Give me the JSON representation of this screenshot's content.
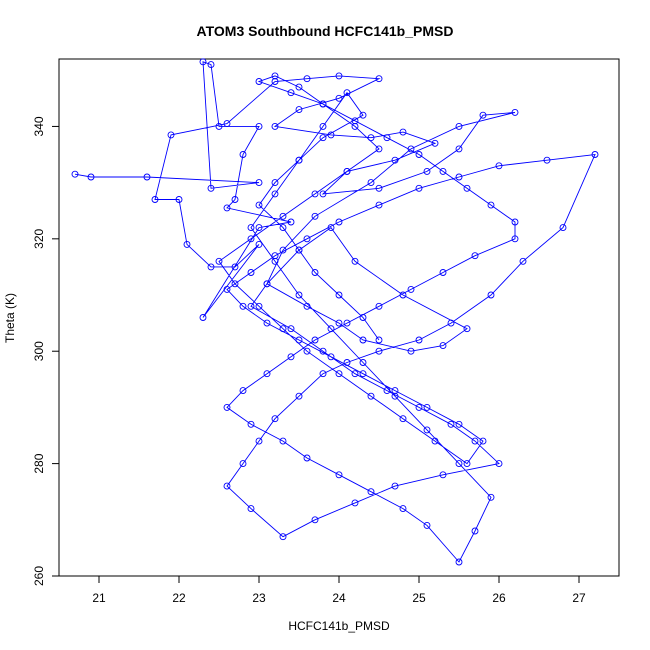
{
  "chart_data": {
    "type": "scatter",
    "title": "ATOM3 Southbound HCFC141b_PMSD",
    "xlabel": "HCFC141b_PMSD",
    "ylabel": "Theta (K)",
    "xlim": [
      20.5,
      27.5
    ],
    "ylim": [
      260,
      352
    ],
    "x_ticks": [
      21,
      22,
      23,
      24,
      25,
      26,
      27
    ],
    "y_ticks": [
      260,
      280,
      300,
      320,
      340
    ],
    "connected": true,
    "colors": {
      "series": "#0000ff",
      "axes": "#000000"
    },
    "x": [
      20.7,
      20.9,
      21.6,
      23.0,
      22.4,
      22.3,
      22.4,
      22.5,
      23.0,
      22.8,
      22.7,
      22.6,
      23.4,
      23.0,
      22.3,
      23.0,
      22.7,
      22.4,
      22.1,
      22.0,
      21.7,
      21.9,
      22.6,
      23.2,
      23.6,
      24.0,
      24.5,
      24.0,
      23.5,
      23.2,
      23.9,
      24.4,
      24.8,
      25.2,
      24.7,
      24.1,
      23.8,
      24.5,
      25.1,
      25.5,
      25.8,
      26.2,
      25.5,
      24.9,
      24.4,
      23.7,
      23.3,
      23.1,
      23.6,
      24.0,
      24.3,
      24.9,
      25.3,
      25.6,
      24.8,
      24.2,
      23.9,
      23.5,
      23.1,
      22.9,
      23.4,
      23.8,
      24.2,
      24.6,
      25.0,
      25.4,
      25.7,
      26.0,
      25.3,
      24.7,
      24.2,
      23.7,
      23.3,
      22.9,
      22.6,
      22.8,
      23.0,
      23.2,
      23.5,
      23.8,
      24.1,
      24.5,
      25.0,
      25.4,
      25.9,
      26.3,
      26.8,
      27.2,
      26.6,
      26.0,
      25.5,
      25.0,
      24.5,
      24.0,
      23.6,
      23.2,
      22.9,
      22.6,
      22.8,
      23.1,
      23.5,
      23.9,
      24.3,
      24.7,
      25.1,
      25.5,
      25.8,
      25.6,
      25.2,
      24.8,
      24.4,
      24.0,
      23.6,
      23.3,
      23.0,
      22.7,
      22.5,
      22.9,
      23.3,
      23.7,
      24.1,
      24.5,
      24.2,
      23.8,
      23.5,
      23.2,
      23.0,
      23.4,
      23.8,
      24.2,
      24.6,
      25.0,
      25.3,
      25.6,
      25.9,
      26.2,
      26.2,
      25.7,
      25.3,
      24.9,
      24.5,
      24.1,
      23.7,
      23.4,
      23.1,
      22.8,
      22.6,
      22.9,
      23.3,
      23.6,
      24.0,
      24.4,
      24.8,
      25.1,
      25.5,
      25.7,
      25.9,
      25.5,
      25.1,
      24.7,
      24.3,
      23.9,
      23.5,
      23.2,
      22.9,
      23.2,
      23.5,
      23.8,
      24.1,
      24.3,
      23.8,
      23.5,
      23.2,
      23.0,
      23.3,
      23.5,
      23.7,
      24.0,
      24.3,
      24.5
    ],
    "y": [
      331.5,
      331.0,
      331.0,
      330.0,
      329.0,
      351.5,
      351.0,
      340.0,
      340.0,
      335.0,
      327.0,
      325.5,
      323.0,
      322.0,
      306.0,
      319.0,
      315.0,
      315.0,
      319.0,
      327.0,
      327.0,
      338.5,
      340.5,
      348.0,
      348.5,
      349.0,
      348.5,
      345.0,
      343.0,
      340.0,
      338.5,
      338.0,
      339.0,
      337.0,
      334.0,
      332.0,
      328.0,
      329.0,
      332.0,
      336.0,
      342.0,
      342.5,
      340.0,
      336.0,
      330.0,
      324.0,
      318.0,
      312.0,
      308.0,
      305.0,
      302.0,
      300.0,
      301.0,
      304.0,
      310.0,
      316.0,
      322.0,
      318.0,
      312.0,
      308.0,
      304.0,
      300.0,
      296.0,
      293.0,
      290.0,
      287.0,
      284.0,
      280.0,
      278.0,
      276.0,
      273.0,
      270.0,
      267.0,
      272.0,
      276.0,
      280.0,
      284.0,
      288.0,
      292.0,
      296.0,
      298.0,
      300.0,
      302.0,
      305.0,
      310.0,
      316.0,
      322.0,
      335.0,
      334.0,
      333.0,
      331.0,
      329.0,
      326.0,
      323.0,
      320.0,
      317.0,
      314.0,
      311.0,
      308.0,
      305.0,
      302.0,
      299.0,
      296.0,
      293.0,
      290.0,
      287.0,
      284.0,
      280.0,
      284.0,
      288.0,
      292.0,
      296.0,
      300.0,
      304.0,
      308.0,
      312.0,
      316.0,
      320.0,
      324.0,
      328.0,
      332.0,
      336.0,
      340.0,
      344.0,
      347.0,
      349.0,
      348.0,
      346.0,
      344.0,
      341.0,
      338.0,
      335.0,
      332.0,
      329.0,
      326.0,
      323.0,
      320.0,
      317.0,
      314.0,
      311.0,
      308.0,
      305.0,
      302.0,
      299.0,
      296.0,
      293.0,
      290.0,
      287.0,
      284.0,
      281.0,
      278.0,
      275.0,
      272.0,
      269.0,
      262.5,
      268.0,
      274.0,
      280.0,
      286.0,
      292.0,
      298.0,
      304.0,
      310.0,
      316.0,
      322.0,
      328.0,
      334.0,
      340.0,
      346.0,
      342.0,
      338.0,
      334.0,
      330.0,
      326.0,
      322.0,
      318.0,
      314.0,
      310.0,
      306.0,
      302.0
    ]
  }
}
